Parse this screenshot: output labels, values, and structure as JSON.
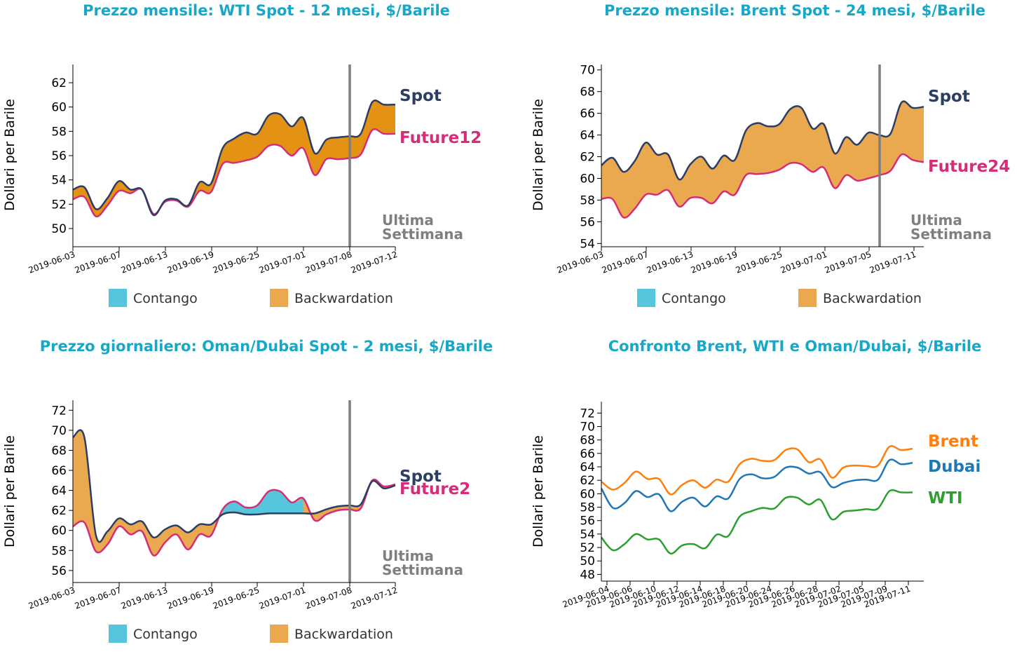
{
  "colors": {
    "title": "#17a8c9",
    "spot": "#2c3e63",
    "future": "#d62d7a",
    "contango": "#55c6dc",
    "backwardation": "#eaa94e",
    "backwardation_dark": "#e39214",
    "lastweek": "#7f7f7f",
    "brent": "#ff7f0e",
    "dubai": "#1f77b4",
    "wti": "#2ca02c"
  },
  "legend": {
    "contango": "Contango",
    "backwardation": "Backwardation"
  },
  "chart_data": [
    {
      "id": "wti",
      "type": "area",
      "title": "Prezzo mensile: WTI Spot - 12 mesi, $/Barile",
      "ylabel": "Dollari per Barile",
      "ylim": [
        48.5,
        63.5
      ],
      "yticks": [
        50,
        52,
        54,
        56,
        58,
        60,
        62
      ],
      "xticks": [
        "2019-06-03",
        "2019-06-07",
        "2019-06-13",
        "2019-06-19",
        "2019-06-25",
        "2019-07-01",
        "2019-07-08",
        "2019-07-12"
      ],
      "last_week_label": [
        "Ultima",
        "Settimana"
      ],
      "series": [
        {
          "name": "Spot",
          "values": [
            53.2,
            53.4,
            51.6,
            52.5,
            53.9,
            53.2,
            53.2,
            51.1,
            52.3,
            52.4,
            51.9,
            53.8,
            53.7,
            56.6,
            57.4,
            57.9,
            57.8,
            59.3,
            59.4,
            58.4,
            59.1,
            56.2,
            57.3,
            57.5,
            57.6,
            57.8,
            60.4,
            60.2,
            60.2
          ]
        },
        {
          "name": "Future12",
          "values": [
            52.4,
            52.6,
            51.0,
            51.9,
            53.1,
            52.9,
            53.2,
            51.2,
            52.2,
            52.3,
            51.8,
            53.1,
            53.0,
            55.3,
            55.4,
            55.6,
            55.9,
            56.8,
            56.8,
            56.0,
            56.6,
            54.4,
            55.7,
            55.7,
            55.8,
            56.1,
            58.1,
            57.8,
            57.8
          ]
        }
      ]
    },
    {
      "id": "brent",
      "type": "area",
      "title": "Prezzo mensile: Brent Spot - 24 mesi, $/Barile",
      "ylabel": "Dollari per Barile",
      "ylim": [
        53.7,
        70.5
      ],
      "yticks": [
        54,
        56,
        58,
        60,
        62,
        64,
        66,
        68,
        70
      ],
      "xticks": [
        "2019-06-03",
        "2019-06-07",
        "2019-06-13",
        "2019-06-19",
        "2019-06-25",
        "2019-07-01",
        "2019-07-05",
        "2019-07-11"
      ],
      "last_week_label": [
        "Ultima",
        "Settimana"
      ],
      "series": [
        {
          "name": "Spot",
          "values": [
            61.2,
            61.9,
            60.6,
            61.6,
            63.3,
            62.2,
            62.2,
            59.9,
            61.3,
            62.0,
            60.9,
            62.1,
            61.7,
            64.4,
            65.1,
            64.8,
            65.0,
            66.4,
            66.5,
            64.6,
            65.0,
            62.3,
            63.8,
            63.1,
            64.2,
            64.0,
            64.1,
            67.0,
            66.5,
            66.6
          ]
        },
        {
          "name": "Future24",
          "values": [
            58.1,
            58.1,
            56.4,
            57.2,
            58.5,
            58.5,
            58.9,
            57.4,
            58.2,
            58.2,
            57.7,
            58.8,
            58.5,
            60.3,
            60.4,
            60.5,
            60.8,
            61.4,
            61.3,
            60.6,
            61.0,
            59.1,
            60.3,
            59.8,
            60.0,
            60.3,
            60.7,
            62.2,
            61.7,
            61.5
          ]
        }
      ]
    },
    {
      "id": "dubai",
      "type": "area",
      "title": "Prezzo giornaliero: Oman/Dubai Spot - 2 mesi, $/Barile",
      "ylabel": "Dollari per Barile",
      "ylim": [
        54.8,
        73.0
      ],
      "yticks": [
        56,
        58,
        60,
        62,
        64,
        66,
        68,
        70,
        72
      ],
      "xticks": [
        "2019-06-03",
        "2019-06-07",
        "2019-06-13",
        "2019-06-19",
        "2019-06-25",
        "2019-07-01",
        "2019-07-08",
        "2019-07-12"
      ],
      "last_week_label": [
        "Ultima",
        "Settimana"
      ],
      "series": [
        {
          "name": "Spot",
          "values": [
            69.3,
            69.3,
            59.5,
            59.9,
            61.2,
            60.6,
            60.9,
            59.3,
            60.1,
            60.5,
            59.8,
            60.6,
            60.6,
            61.6,
            61.8,
            61.6,
            61.6,
            61.7,
            61.7,
            61.7,
            61.7,
            61.7,
            62.1,
            62.4,
            62.5,
            62.6,
            64.9,
            64.2,
            64.5
          ]
        },
        {
          "name": "Future2",
          "values": [
            60.4,
            60.8,
            57.9,
            58.6,
            60.4,
            59.6,
            59.9,
            57.5,
            58.8,
            59.6,
            58.1,
            59.6,
            59.5,
            62.1,
            62.9,
            62.3,
            62.5,
            63.9,
            63.9,
            62.8,
            63.2,
            61.0,
            61.6,
            62.0,
            62.1,
            62.2,
            65.0,
            64.4,
            64.6
          ]
        }
      ]
    },
    {
      "id": "compare",
      "type": "line",
      "title": "Confronto Brent, WTI e Oman/Dubai, $/Barile",
      "ylabel": "Dollari per Barile",
      "ylim": [
        47.0,
        73.7
      ],
      "yticks": [
        48,
        50,
        52,
        54,
        56,
        58,
        60,
        62,
        64,
        66,
        68,
        70,
        72
      ],
      "xticks": [
        "2019-06-04",
        "2019-06-06",
        "2019-06-10",
        "2019-06-12",
        "2019-06-14",
        "2019-06-18",
        "2019-06-20",
        "2019-06-24",
        "2019-06-26",
        "2019-06-28",
        "2019-07-02",
        "2019-07-05",
        "2019-07-09",
        "2019-07-11"
      ],
      "series": [
        {
          "name": "Brent",
          "values": [
            61.8,
            60.6,
            61.6,
            63.3,
            62.2,
            62.2,
            59.9,
            61.3,
            62.0,
            60.9,
            62.1,
            61.8,
            64.4,
            65.2,
            64.9,
            65.0,
            66.5,
            66.6,
            64.7,
            65.1,
            62.4,
            63.9,
            64.2,
            64.1,
            64.2,
            67.0,
            66.5,
            66.7
          ]
        },
        {
          "name": "Dubai",
          "values": [
            60.8,
            57.9,
            58.6,
            60.4,
            59.5,
            59.9,
            57.4,
            58.8,
            59.4,
            58.1,
            59.6,
            59.3,
            62.2,
            62.9,
            62.3,
            62.5,
            63.9,
            63.9,
            63.0,
            63.2,
            61.0,
            61.6,
            62.0,
            62.1,
            62.1,
            65.0,
            64.4,
            64.6
          ]
        },
        {
          "name": "WTI",
          "values": [
            53.5,
            51.6,
            52.5,
            54.0,
            53.2,
            53.2,
            51.1,
            52.3,
            52.5,
            51.9,
            53.9,
            53.7,
            56.6,
            57.4,
            57.9,
            57.8,
            59.4,
            59.4,
            58.4,
            59.1,
            56.2,
            57.3,
            57.5,
            57.7,
            57.8,
            60.4,
            60.2,
            60.2
          ]
        }
      ]
    }
  ]
}
